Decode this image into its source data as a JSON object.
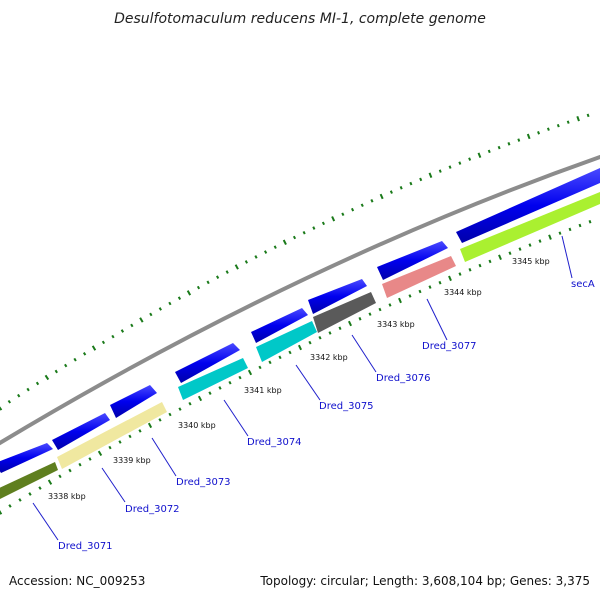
{
  "title": "Desulfotomaculum reducens MI-1, complete genome",
  "footer": {
    "accession": "Accession: NC_009253",
    "topology": "Topology: circular; Length: 3,608,104 bp; Genes: 3,375"
  },
  "colors": {
    "backbone": "#8c8c8c",
    "forward_gene": "#0000ee",
    "reverse_tick": "#1a7a1a",
    "label": "#1010cc"
  },
  "kbp_labels": [
    "3338 kbp",
    "3339 kbp",
    "3340 kbp",
    "3341 kbp",
    "3342 kbp",
    "3343 kbp",
    "3344 kbp",
    "3345 kbp"
  ],
  "reverse_genes": [
    {
      "label": "Dred_3071",
      "color": "#5f7f1f"
    },
    {
      "label": "Dred_3072",
      "color": "#f0e8a0"
    },
    {
      "label": "Dred_3073",
      "color": ""
    },
    {
      "label": "Dred_3074",
      "color": "#00c8c8"
    },
    {
      "label": "Dred_3075",
      "color": "#00c8c8"
    },
    {
      "label": "Dred_3076",
      "color": "#5a5a5a"
    },
    {
      "label": "Dred_3077",
      "color": "#e88888"
    },
    {
      "label": "secA",
      "color": "#aaf030"
    }
  ]
}
